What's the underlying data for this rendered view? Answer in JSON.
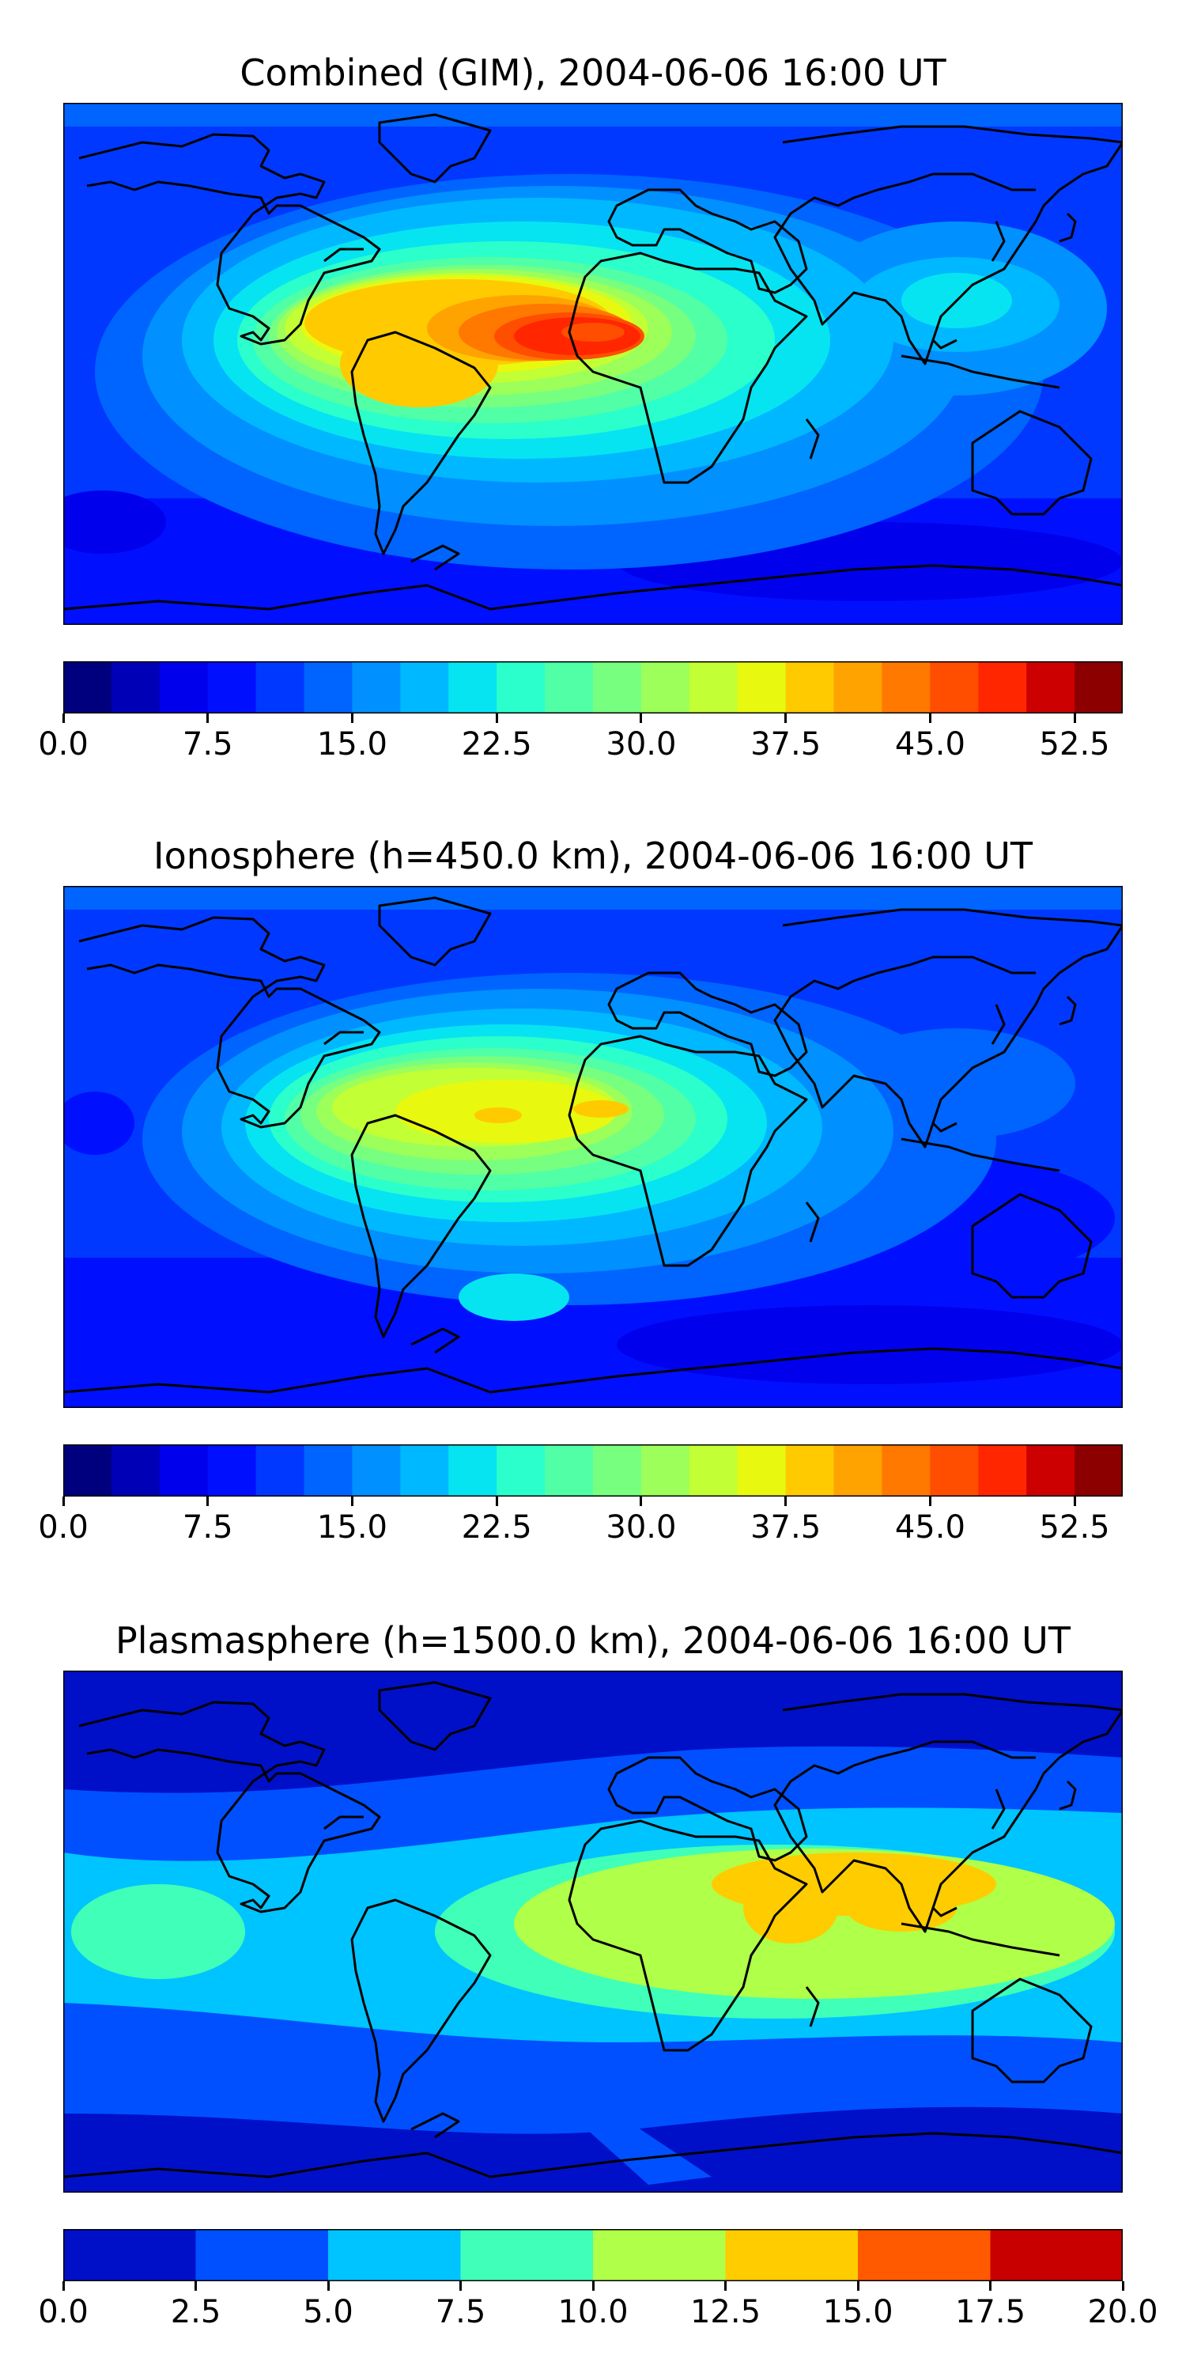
{
  "panels": [
    {
      "title": "Combined (GIM), 2004-06-06 16:00 UT",
      "colorbar": {
        "ticks": [
          "0.0",
          "7.5",
          "15.0",
          "22.5",
          "30.0",
          "37.5",
          "45.0",
          "52.5"
        ],
        "levels": 22,
        "colors": [
          "#00007f",
          "#0000b6",
          "#0000ed",
          "#0010ff",
          "#0038ff",
          "#0064ff",
          "#0090ff",
          "#00b8ff",
          "#06e4f1",
          "#2bffcb",
          "#51ffa6",
          "#77ff80",
          "#9cff5a",
          "#c2ff34",
          "#e8f80f",
          "#ffca00",
          "#ffa300",
          "#ff7800",
          "#ff4e00",
          "#ff2600",
          "#cc0000",
          "#8c0000"
        ]
      }
    },
    {
      "title": "Ionosphere  (h=450.0 km), 2004-06-06 16:00 UT",
      "colorbar": {
        "ticks": [
          "0.0",
          "7.5",
          "15.0",
          "22.5",
          "30.0",
          "37.5",
          "45.0",
          "52.5"
        ],
        "levels": 22,
        "colors": [
          "#00007f",
          "#0000b6",
          "#0000ed",
          "#0010ff",
          "#0038ff",
          "#0064ff",
          "#0090ff",
          "#00b8ff",
          "#06e4f1",
          "#2bffcb",
          "#51ffa6",
          "#77ff80",
          "#9cff5a",
          "#c2ff34",
          "#e8f80f",
          "#ffca00",
          "#ffa300",
          "#ff7800",
          "#ff4e00",
          "#ff2600",
          "#cc0000",
          "#8c0000"
        ]
      }
    },
    {
      "title": "Plasmasphere (h=1500.0 km), 2004-06-06 16:00 UT",
      "colorbar": {
        "ticks": [
          "0.0",
          "2.5",
          "5.0",
          "7.5",
          "10.0",
          "12.5",
          "15.0",
          "17.5",
          "20.0"
        ],
        "levels": 8,
        "colors": [
          "#0010c8",
          "#0050ff",
          "#00c4ff",
          "#40ffb8",
          "#b0ff48",
          "#ffcc00",
          "#ff5a00",
          "#c80000"
        ]
      }
    }
  ]
}
